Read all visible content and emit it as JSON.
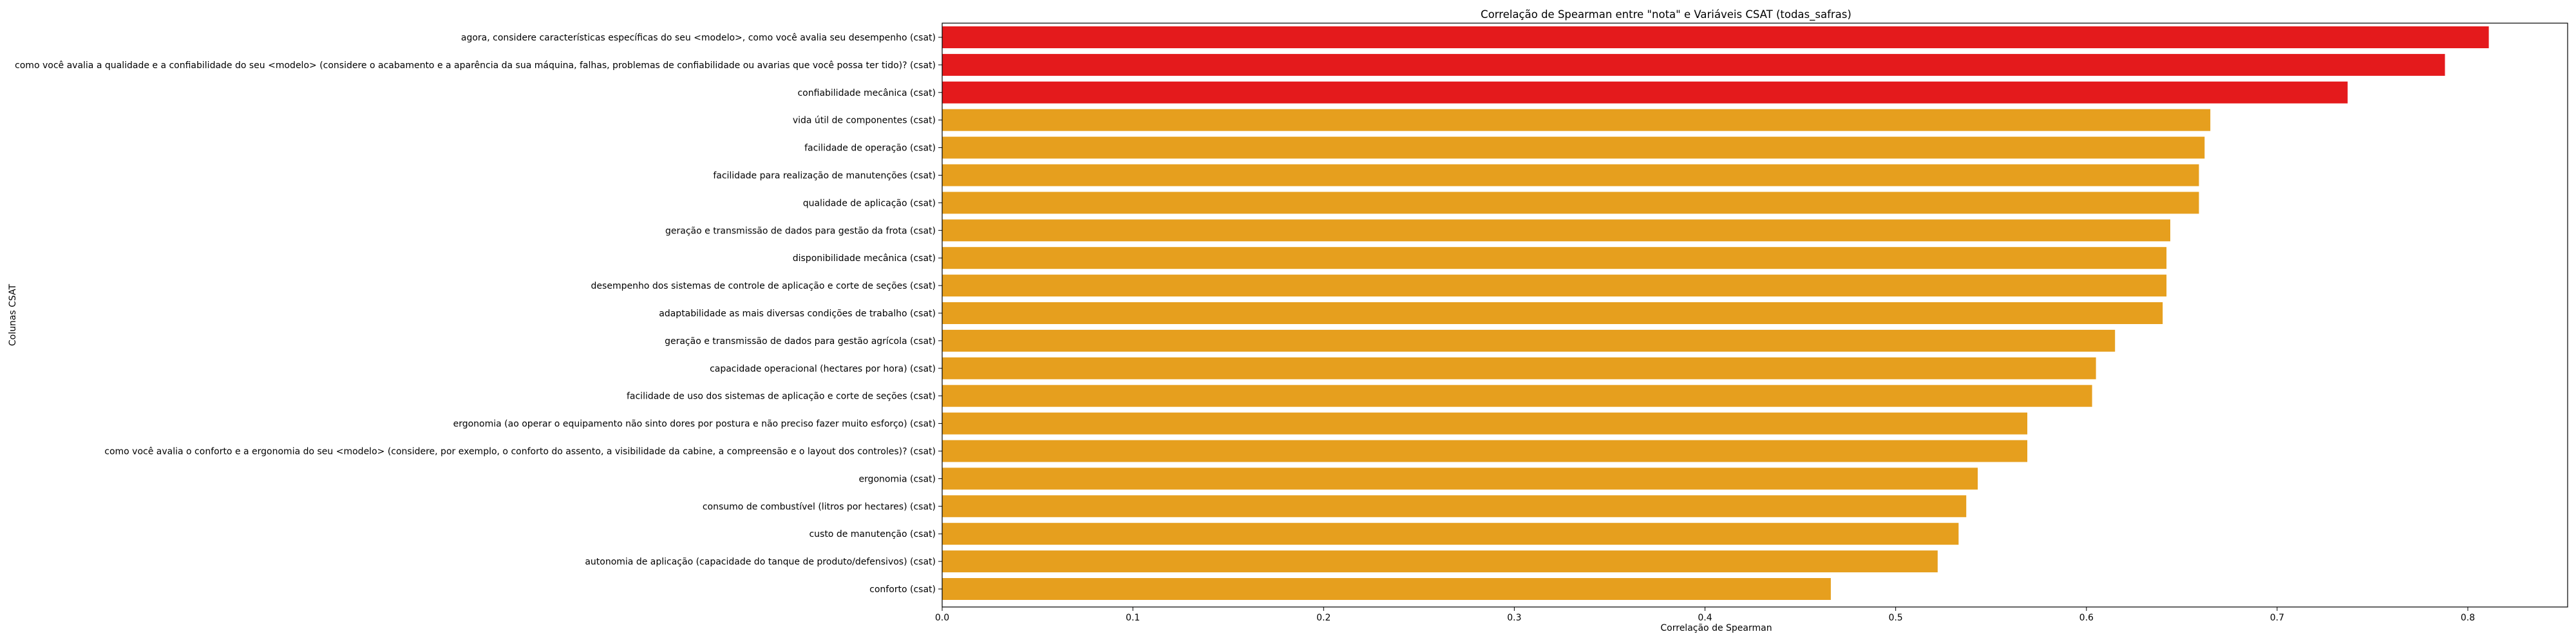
{
  "chart_data": {
    "type": "bar",
    "orientation": "horizontal",
    "title": "Correlação de Spearman entre \"nota\" e Variáveis CSAT (todas_safras)",
    "xlabel": "Correlação de Spearman",
    "ylabel": "Colunas CSAT",
    "xlim": [
      0,
      0.85
    ],
    "xticks": [
      "0.0",
      "0.1",
      "0.2",
      "0.3",
      "0.4",
      "0.5",
      "0.6",
      "0.7",
      "0.8"
    ],
    "grid": false,
    "legend": "none",
    "colors": {
      "high": "#e41a1c",
      "medium": "#e69f1e"
    },
    "categories": [
      "agora, considere características específicas do seu <modelo>, como você avalia seu desempenho (csat)",
      "como você avalia a qualidade e a confiabilidade do seu <modelo> (considere o acabamento e a aparência da sua máquina, falhas, problemas de confiabilidade ou avarias que você possa ter tido)? (csat)",
      "confiabilidade mecânica (csat)",
      "vida útil de componentes (csat)",
      "facilidade de operação (csat)",
      "facilidade para realização de manutenções (csat)",
      "qualidade de aplicação (csat)",
      "geração e transmissão de dados para gestão da frota (csat)",
      "disponibilidade mecânica (csat)",
      "desempenho dos sistemas de controle de aplicação e corte de seções (csat)",
      "adaptabilidade as mais diversas condições de trabalho (csat)",
      "geração e transmissão de dados para gestão agrícola (csat)",
      "capacidade operacional (hectares por hora) (csat)",
      "facilidade de uso dos sistemas de aplicação e corte de seções (csat)",
      "ergonomia (ao operar o equipamento não sinto dores por postura e não preciso fazer muito esforço) (csat)",
      "como você avalia o conforto e a ergonomia do seu <modelo>  (considere, por exemplo, o conforto do assento, a visibilidade da cabine, a compreensão e o layout dos controles)? (csat)",
      "ergonomia (csat)",
      "consumo de combustível (litros por hectares) (csat)",
      "custo de manutenção (csat)",
      "autonomia de aplicação (capacidade do tanque de produto/defensivos) (csat)",
      "conforto (csat)"
    ],
    "values": [
      0.811,
      0.788,
      0.737,
      0.665,
      0.662,
      0.659,
      0.659,
      0.644,
      0.642,
      0.642,
      0.64,
      0.615,
      0.605,
      0.603,
      0.569,
      0.569,
      0.543,
      0.537,
      0.533,
      0.522,
      0.466
    ],
    "bar_colors": [
      "high",
      "high",
      "high",
      "medium",
      "medium",
      "medium",
      "medium",
      "medium",
      "medium",
      "medium",
      "medium",
      "medium",
      "medium",
      "medium",
      "medium",
      "medium",
      "medium",
      "medium",
      "medium",
      "medium",
      "medium"
    ]
  }
}
